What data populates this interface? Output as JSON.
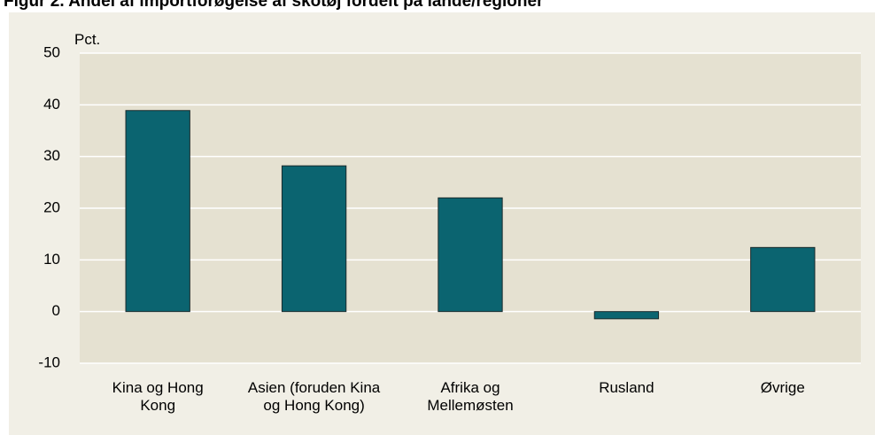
{
  "chart_data": {
    "type": "bar",
    "title": "Figur 2. Andel af importforøgelse af skotøj fordelt på lande/regioner",
    "y_label": "Pct.",
    "categories": [
      "Kina og Hong Kong",
      "Asien (foruden Kina og Hong Kong)",
      "Afrika og Mellemøsten",
      "Rusland",
      "Øvrige"
    ],
    "values": [
      38.9,
      28.2,
      22,
      -1.4,
      12.4
    ],
    "color": "#0b6470",
    "ylim": [
      -10,
      50
    ],
    "yticks": [
      -10,
      0,
      10,
      20,
      30,
      40,
      50
    ],
    "grid": true
  }
}
